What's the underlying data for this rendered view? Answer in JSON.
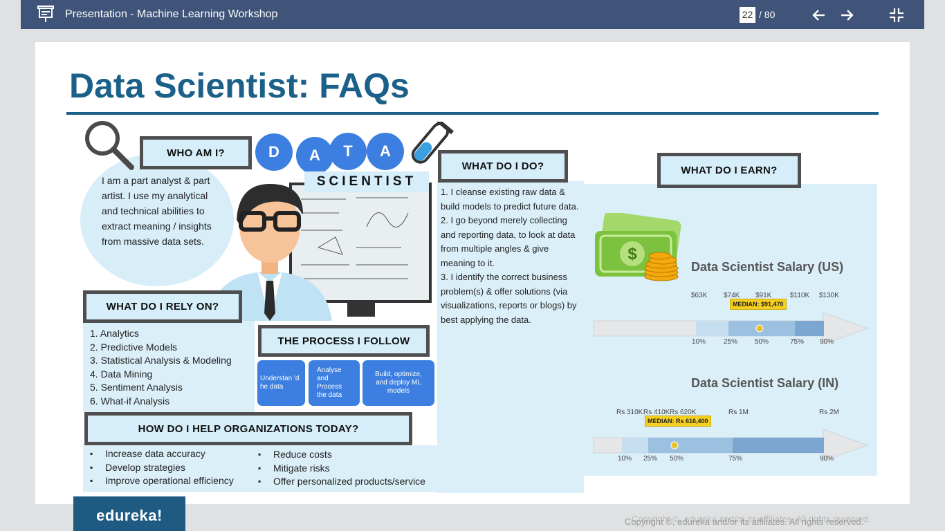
{
  "app": {
    "title": "Presentation - Machine Learning Workshop",
    "current_page": "22",
    "total_pages": "/ 80",
    "icons": [
      "presentation-icon",
      "arrow-left-icon",
      "arrow-right-icon",
      "exit-fullscreen-icon"
    ]
  },
  "slide": {
    "title": "Data Scientist: FAQs",
    "who_am_i": {
      "label": "WHO AM I?",
      "text": "I am a part analyst & part artist. I use my analytical and technical abilities to extract meaning / insights from massive data sets."
    },
    "data_letters": [
      "D",
      "A",
      "T",
      "A"
    ],
    "scientist": "SCIENTIST",
    "rely": {
      "label": "WHAT DO I RELY ON?",
      "items": [
        "1.   Analytics",
        "2.   Predictive Models",
        "3.   Statistical Analysis & Modeling",
        "4.   Data Mining",
        "5.   Sentiment Analysis",
        "6.   What-if Analysis"
      ]
    },
    "process": {
      "label": "THE PROCESS I FOLLOW",
      "steps": [
        "Understan 'd  he data",
        "Analyse and Process the data",
        "Build, optimize, and deploy ML models"
      ]
    },
    "help": {
      "label": "HOW DO I HELP ORGANIZATIONS TODAY?",
      "col1": [
        "Increase data accuracy",
        "Develop strategies",
        "Improve operational efficiency"
      ],
      "col2": [
        "Reduce costs",
        "Mitigate risks",
        "Offer personalized products/service"
      ]
    },
    "do": {
      "label": "WHAT DO I DO?",
      "items": [
        "1. I cleanse existing raw data & build models to predict future data.",
        "2. I go beyond merely collecting and reporting data, to look at data from multiple angles & give meaning to it.",
        "3. I identify the correct business problem(s)  & offer solutions (via visualizations, reports or blogs) by best applying the data."
      ]
    },
    "earn": {
      "label": "WHAT DO I EARN?",
      "us": {
        "title": "Data Scientist Salary (US)",
        "values": [
          "$63K",
          "$74K",
          "$91K",
          "$110K",
          "$130K"
        ],
        "percentiles": [
          "10%",
          "25%",
          "50%",
          "75%",
          "90%"
        ],
        "median": "MEDIAN: $91,470"
      },
      "in": {
        "title": "Data Scientist Salary (IN)",
        "values": [
          "Rs 310K",
          "Rs 410K",
          "Rs 620K",
          "Rs 1M",
          "Rs 2M"
        ],
        "percentiles": [
          "10%",
          "25%",
          "50%",
          "75%",
          "90%"
        ],
        "median": "MEDIAN: Rs 616,400"
      }
    },
    "logo": "edureka!",
    "copyright": "Copyright ©, edureka and/or its affiliates. All rights reserved."
  },
  "colors": {
    "topbar": "#3f5478",
    "title": "#1b6088",
    "accent": "#3d7fe0",
    "panel": "#dbeff9"
  }
}
